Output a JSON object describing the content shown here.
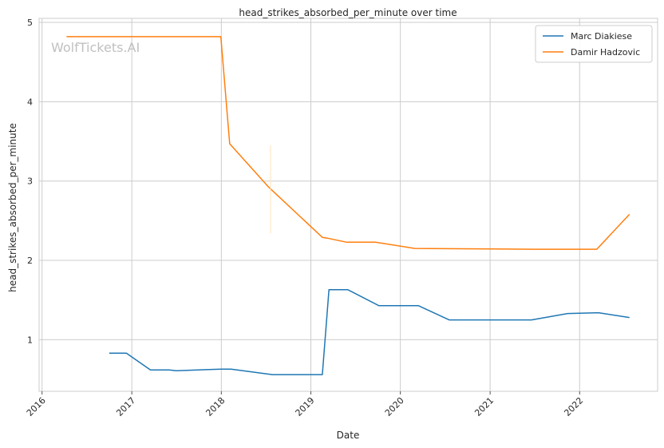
{
  "chart_data": {
    "type": "line",
    "title": "head_strikes_absorbed_per_minute over time",
    "xlabel": "Date",
    "ylabel": "head_strikes_absorbed_per_minute",
    "watermark": "WolfTickets.AI",
    "xlim": [
      "2015-12-20",
      "2022-11-15"
    ],
    "ylim": [
      0.35,
      5.05
    ],
    "x_ticks": [
      "2016-01-01",
      "2017-01-01",
      "2018-01-01",
      "2019-01-01",
      "2020-01-01",
      "2021-01-01",
      "2022-01-01"
    ],
    "x_tick_labels": [
      "2016",
      "2017",
      "2018",
      "2019",
      "2020",
      "2021",
      "2022"
    ],
    "y_ticks": [
      1,
      2,
      3,
      4,
      5
    ],
    "y_tick_labels": [
      "1",
      "2",
      "3",
      "4",
      "5"
    ],
    "grid": true,
    "legend": "top-right",
    "series": [
      {
        "name": "Marc Diakiese",
        "color": "#1f77b4",
        "points": [
          [
            "2016-10-01",
            0.83
          ],
          [
            "2016-12-10",
            0.83
          ],
          [
            "2017-03-18",
            0.62
          ],
          [
            "2017-06-03",
            0.62
          ],
          [
            "2017-07-01",
            0.61
          ],
          [
            "2018-01-01",
            0.63
          ],
          [
            "2018-02-10",
            0.63
          ],
          [
            "2018-07-28",
            0.56
          ],
          [
            "2019-02-17",
            0.56
          ],
          [
            "2019-03-16",
            1.63
          ],
          [
            "2019-06-01",
            1.63
          ],
          [
            "2019-10-05",
            1.43
          ],
          [
            "2020-03-14",
            1.43
          ],
          [
            "2020-07-18",
            1.25
          ],
          [
            "2021-06-19",
            1.25
          ],
          [
            "2021-11-13",
            1.33
          ],
          [
            "2022-03-19",
            1.34
          ],
          [
            "2022-07-23",
            1.28
          ]
        ]
      },
      {
        "name": "Damir Hadzovic",
        "color": "#ff7f0e",
        "points": [
          [
            "2016-04-10",
            4.82
          ],
          [
            "2017-12-30",
            4.82
          ],
          [
            "2018-02-04",
            3.47
          ],
          [
            "2018-07-14",
            2.92
          ],
          [
            "2019-02-17",
            2.29
          ],
          [
            "2019-03-09",
            2.28
          ],
          [
            "2019-05-25",
            2.23
          ],
          [
            "2019-09-21",
            2.23
          ],
          [
            "2020-02-29",
            2.15
          ],
          [
            "2021-06-26",
            2.14
          ],
          [
            "2022-03-12",
            2.14
          ],
          [
            "2022-07-23",
            2.58
          ]
        ]
      }
    ]
  }
}
